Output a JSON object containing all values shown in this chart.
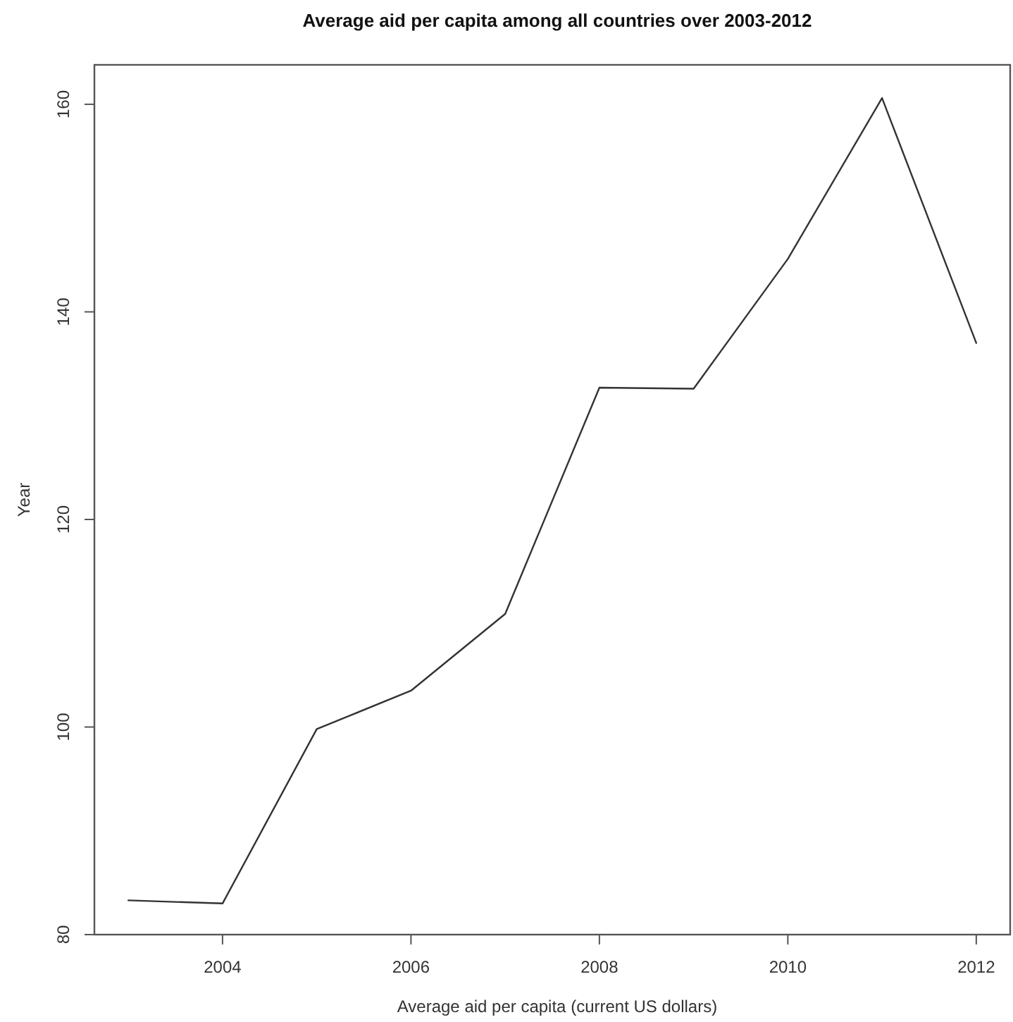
{
  "chart_data": {
    "type": "line",
    "title": "Average aid per capita among all countries over 2003-2012",
    "xlabel": "Average aid per capita (current US dollars)",
    "ylabel": "Year",
    "x": [
      2003,
      2004,
      2005,
      2006,
      2007,
      2008,
      2009,
      2010,
      2011,
      2012
    ],
    "series": [
      {
        "color": "#333333",
        "values": [
          83.3,
          83.0,
          99.8,
          103.5,
          110.9,
          132.7,
          132.6,
          145.1,
          160.6,
          137.0
        ]
      }
    ],
    "xlim": [
      2002.64,
      2012.36
    ],
    "ylim": [
      80,
      163.8
    ],
    "xticks": [
      2004,
      2006,
      2008,
      2010,
      2012
    ],
    "yticks": [
      80,
      100,
      120,
      140,
      160
    ],
    "line_style": "solid"
  }
}
